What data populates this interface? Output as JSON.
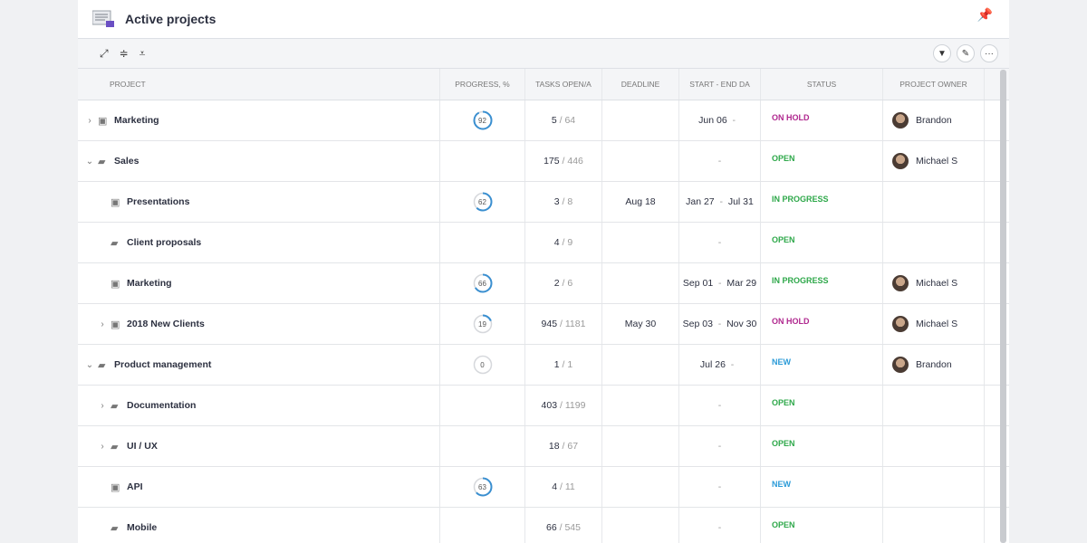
{
  "title": "Active projects",
  "colors": {
    "ring": "#3a8fd0",
    "ring_track": "#d6d8dc",
    "ON HOLD": "#b0288f",
    "OPEN": "#2ea84a",
    "IN PROGRESS": "#2ea84a",
    "NEW": "#2b9bd8"
  },
  "toolbar": {
    "left_icons": [
      "expand-icon",
      "collapse-rows-icon",
      "expand-all-icon"
    ],
    "right_icons": [
      "filter-icon",
      "edit-icon",
      "more-icon"
    ]
  },
  "columns": [
    "Project",
    "Progress, %",
    "Tasks open/a",
    "Deadline",
    "Start - End da",
    "Status",
    "Project owner"
  ],
  "rows": [
    {
      "level": 0,
      "toggle": "collapsed",
      "icon": "project",
      "name": "Marketing",
      "progress": 92,
      "open": "5",
      "total": "64",
      "deadline": "",
      "start": "Jun 06",
      "end": "",
      "status": "ON HOLD",
      "owner": "Brandon"
    },
    {
      "level": 0,
      "toggle": "expanded",
      "icon": "folder",
      "name": "Sales",
      "progress": null,
      "open": "175",
      "total": "446",
      "deadline": "",
      "start": "",
      "end": "",
      "status": "OPEN",
      "owner": "Michael S"
    },
    {
      "level": 1,
      "toggle": "",
      "icon": "project",
      "name": "Presentations",
      "progress": 62,
      "open": "3",
      "total": "8",
      "deadline": "Aug 18",
      "start": "Jan 27",
      "end": "Jul 31",
      "status": "IN PROGRESS",
      "owner": ""
    },
    {
      "level": 1,
      "toggle": "",
      "icon": "folder",
      "name": "Client proposals",
      "progress": null,
      "open": "4",
      "total": "9",
      "deadline": "",
      "start": "",
      "end": "",
      "status": "OPEN",
      "owner": ""
    },
    {
      "level": 1,
      "toggle": "",
      "icon": "project",
      "name": "Marketing",
      "progress": 66,
      "open": "2",
      "total": "6",
      "deadline": "",
      "start": "Sep 01",
      "end": "Mar 29",
      "status": "IN PROGRESS",
      "owner": "Michael S"
    },
    {
      "level": 1,
      "toggle": "collapsed",
      "icon": "project",
      "name": "2018 New Clients",
      "progress": 19,
      "open": "945",
      "total": "1181",
      "deadline": "May 30",
      "start": "Sep 03",
      "end": "Nov 30",
      "status": "ON HOLD",
      "owner": "Michael S"
    },
    {
      "level": 0,
      "toggle": "expanded",
      "icon": "folder",
      "name": "Product management",
      "progress": 0,
      "open": "1",
      "total": "1",
      "deadline": "",
      "start": "Jul 26",
      "end": "",
      "status": "NEW",
      "owner": "Brandon"
    },
    {
      "level": 1,
      "toggle": "collapsed",
      "icon": "folder",
      "name": "Documentation",
      "progress": null,
      "open": "403",
      "total": "1199",
      "deadline": "",
      "start": "",
      "end": "",
      "status": "OPEN",
      "owner": ""
    },
    {
      "level": 1,
      "toggle": "collapsed",
      "icon": "folder",
      "name": "UI / UX",
      "progress": null,
      "open": "18",
      "total": "67",
      "deadline": "",
      "start": "",
      "end": "",
      "status": "OPEN",
      "owner": ""
    },
    {
      "level": 1,
      "toggle": "",
      "icon": "project",
      "name": "API",
      "progress": 63,
      "open": "4",
      "total": "11",
      "deadline": "",
      "start": "",
      "end": "",
      "status": "NEW",
      "owner": ""
    },
    {
      "level": 1,
      "toggle": "",
      "icon": "folder",
      "name": "Mobile",
      "progress": null,
      "open": "66",
      "total": "545",
      "deadline": "",
      "start": "",
      "end": "",
      "status": "OPEN",
      "owner": ""
    }
  ]
}
